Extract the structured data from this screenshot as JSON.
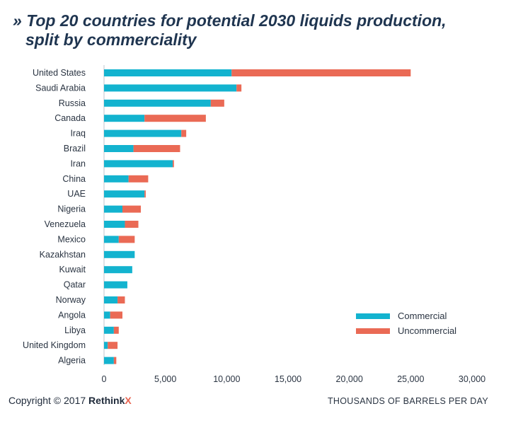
{
  "header": {
    "title_prefix": "»",
    "title_line1": "Top 20 countries for potential 2030 liquids production,",
    "title_line2": "split by commerciality"
  },
  "footer": {
    "copyright": "Copyright © 2017 ",
    "brand": "Rethink",
    "brand_x": "X"
  },
  "colors": {
    "commercial": "#13b3cf",
    "uncommercial": "#ea6a55"
  },
  "chart_data": {
    "type": "bar",
    "orientation": "horizontal",
    "stacked": true,
    "title": "Top 20 countries for potential 2030 liquids production, split by commerciality",
    "xlabel": "THOUSANDS OF BARRELS PER DAY",
    "xlim": [
      0,
      30000
    ],
    "xticks": [
      0,
      5000,
      10000,
      15000,
      20000,
      25000,
      30000
    ],
    "xtick_labels": [
      "0",
      "5,000",
      "10,000",
      "15,000",
      "20,000",
      "25,000",
      "30,000"
    ],
    "grid": false,
    "legend_position": "bottom-right",
    "categories": [
      "United States",
      "Saudi Arabia",
      "Russia",
      "Canada",
      "Iraq",
      "Brazil",
      "Iran",
      "China",
      "UAE",
      "Nigeria",
      "Venezuela",
      "Mexico",
      "Kazakhstan",
      "Kuwait",
      "Qatar",
      "Norway",
      "Angola",
      "Libya",
      "United Kingdom",
      "Algeria"
    ],
    "series": [
      {
        "name": "Commercial",
        "values": [
          10400,
          10800,
          8700,
          3300,
          6300,
          2400,
          5600,
          2000,
          3300,
          1500,
          1700,
          1200,
          2500,
          2300,
          1900,
          1100,
          500,
          800,
          300,
          800
        ]
      },
      {
        "name": "Uncommercial",
        "values": [
          14600,
          400,
          1100,
          5000,
          400,
          3800,
          100,
          1600,
          100,
          1500,
          1100,
          1300,
          0,
          0,
          0,
          600,
          1000,
          400,
          800,
          200
        ]
      }
    ]
  }
}
